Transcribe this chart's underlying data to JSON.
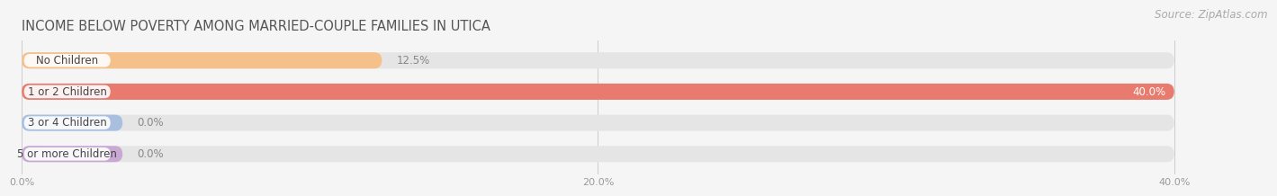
{
  "title": "INCOME BELOW POVERTY AMONG MARRIED-COUPLE FAMILIES IN UTICA",
  "source": "Source: ZipAtlas.com",
  "categories": [
    "No Children",
    "1 or 2 Children",
    "3 or 4 Children",
    "5 or more Children"
  ],
  "values": [
    12.5,
    40.0,
    0.0,
    0.0
  ],
  "bar_colors": [
    "#f5c08a",
    "#e87b6e",
    "#a8bfe0",
    "#c9a8d4"
  ],
  "background_color": "#f5f5f5",
  "bar_bg_color": "#e5e5e5",
  "xlim_max": 40.0,
  "xticks": [
    0.0,
    20.0,
    40.0
  ],
  "xtick_labels": [
    "0.0%",
    "20.0%",
    "40.0%"
  ],
  "title_fontsize": 10.5,
  "source_fontsize": 8.5,
  "label_fontsize": 8.5,
  "value_fontsize": 8.5,
  "bar_height": 0.52
}
